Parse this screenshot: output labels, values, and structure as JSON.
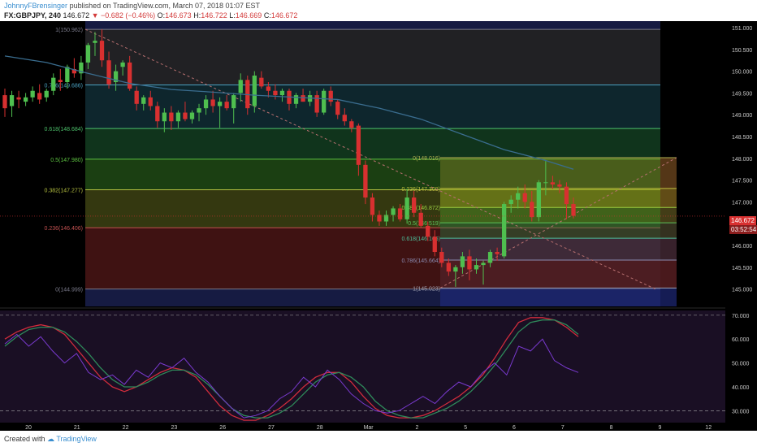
{
  "header": {
    "author": "JohnnyFBrensinger",
    "published": "published on TradingView.com, March 07, 2018 01:07 EST",
    "symbol": "FX:GBPJPY, 240",
    "last": "146.672",
    "arrow": "▼",
    "change": "−0.682 (−0.46%)",
    "open_label": "O:",
    "open": "146.673",
    "high_label": "H:",
    "high": "146.722",
    "low_label": "L:",
    "low": "146.669",
    "close_label": "C:",
    "close": "146.672"
  },
  "price_tags": {
    "last": "146.672",
    "countdown": "03:52:54"
  },
  "footer": {
    "created_with": "Created with",
    "brand": "TradingView"
  },
  "colors": {
    "background": "#000000",
    "up": "#4fbf4f",
    "down": "#d83030",
    "ma": "#3a6d8f",
    "stoch_k": "#d02c3c",
    "stoch_d": "#2e8a5a",
    "rsi": "#7a3ad0",
    "axis_text": "#c8c8c8"
  },
  "chart_data": [
    {
      "type": "candlestick",
      "symbol": "FX:GBPJPY",
      "timeframe": "240",
      "ylim": [
        144.6,
        151.15
      ],
      "y_ticks": [
        "151.000",
        "150.500",
        "150.000",
        "149.500",
        "149.000",
        "148.500",
        "148.000",
        "147.500",
        "147.000",
        "146.500",
        "146.000",
        "145.500",
        "145.000"
      ],
      "x_ticks": [
        "20",
        "21",
        "22",
        "23",
        "26",
        "27",
        "28",
        "Mar",
        "2",
        "5",
        "6",
        "7",
        "8",
        "9",
        "12"
      ],
      "candles": [
        {
          "o": 149.45,
          "h": 149.6,
          "l": 148.95,
          "c": 149.15
        },
        {
          "o": 149.2,
          "h": 149.55,
          "l": 148.95,
          "c": 149.45
        },
        {
          "o": 149.4,
          "h": 149.55,
          "l": 149.15,
          "c": 149.35
        },
        {
          "o": 149.3,
          "h": 149.5,
          "l": 149.2,
          "c": 149.4
        },
        {
          "o": 149.4,
          "h": 149.65,
          "l": 149.3,
          "c": 149.55
        },
        {
          "o": 149.5,
          "h": 149.7,
          "l": 149.25,
          "c": 149.35
        },
        {
          "o": 149.4,
          "h": 149.6,
          "l": 149.3,
          "c": 149.55
        },
        {
          "o": 149.55,
          "h": 149.95,
          "l": 149.45,
          "c": 149.85
        },
        {
          "o": 149.8,
          "h": 150.05,
          "l": 149.55,
          "c": 149.75
        },
        {
          "o": 149.75,
          "h": 150.15,
          "l": 149.6,
          "c": 150.1
        },
        {
          "o": 150.05,
          "h": 150.3,
          "l": 149.85,
          "c": 149.95
        },
        {
          "o": 149.95,
          "h": 150.35,
          "l": 149.8,
          "c": 150.2
        },
        {
          "o": 150.2,
          "h": 150.65,
          "l": 150.05,
          "c": 150.6
        },
        {
          "o": 150.65,
          "h": 150.9,
          "l": 150.35,
          "c": 150.7
        },
        {
          "o": 150.7,
          "h": 150.96,
          "l": 150.1,
          "c": 150.25
        },
        {
          "o": 150.25,
          "h": 150.45,
          "l": 149.6,
          "c": 149.7
        },
        {
          "o": 149.75,
          "h": 150.15,
          "l": 149.55,
          "c": 150.0
        },
        {
          "o": 150.1,
          "h": 150.25,
          "l": 149.9,
          "c": 150.2
        },
        {
          "o": 150.2,
          "h": 150.35,
          "l": 149.55,
          "c": 149.6
        },
        {
          "o": 149.55,
          "h": 149.65,
          "l": 149.1,
          "c": 149.25
        },
        {
          "o": 149.25,
          "h": 149.45,
          "l": 149.1,
          "c": 149.4
        },
        {
          "o": 149.4,
          "h": 149.55,
          "l": 149.1,
          "c": 149.2
        },
        {
          "o": 149.2,
          "h": 149.3,
          "l": 148.7,
          "c": 148.85
        },
        {
          "o": 148.85,
          "h": 149.15,
          "l": 148.6,
          "c": 149.05
        },
        {
          "o": 149.05,
          "h": 149.2,
          "l": 148.65,
          "c": 148.85
        },
        {
          "o": 148.85,
          "h": 149.1,
          "l": 148.7,
          "c": 149.05
        },
        {
          "o": 149.05,
          "h": 149.3,
          "l": 148.85,
          "c": 148.9
        },
        {
          "o": 148.9,
          "h": 149.1,
          "l": 148.8,
          "c": 149.05
        },
        {
          "o": 149.05,
          "h": 149.25,
          "l": 148.85,
          "c": 149.15
        },
        {
          "o": 149.15,
          "h": 149.45,
          "l": 149.0,
          "c": 149.35
        },
        {
          "o": 149.35,
          "h": 149.55,
          "l": 149.05,
          "c": 149.2
        },
        {
          "o": 149.2,
          "h": 149.4,
          "l": 148.7,
          "c": 149.3
        },
        {
          "o": 149.3,
          "h": 149.45,
          "l": 149.1,
          "c": 149.15
        },
        {
          "o": 149.15,
          "h": 149.5,
          "l": 148.8,
          "c": 149.45
        },
        {
          "o": 149.5,
          "h": 149.95,
          "l": 149.3,
          "c": 149.8
        },
        {
          "o": 149.8,
          "h": 149.9,
          "l": 149.0,
          "c": 149.15
        },
        {
          "o": 149.2,
          "h": 150.0,
          "l": 149.05,
          "c": 149.9
        },
        {
          "o": 149.85,
          "h": 150.0,
          "l": 149.6,
          "c": 149.65
        },
        {
          "o": 149.65,
          "h": 149.75,
          "l": 149.4,
          "c": 149.55
        },
        {
          "o": 149.55,
          "h": 149.7,
          "l": 149.35,
          "c": 149.45
        },
        {
          "o": 149.45,
          "h": 149.6,
          "l": 149.3,
          "c": 149.55
        },
        {
          "o": 149.55,
          "h": 149.6,
          "l": 149.1,
          "c": 149.25
        },
        {
          "o": 149.25,
          "h": 149.5,
          "l": 149.15,
          "c": 149.45
        },
        {
          "o": 149.45,
          "h": 149.6,
          "l": 149.3,
          "c": 149.3
        },
        {
          "o": 149.3,
          "h": 149.55,
          "l": 149.2,
          "c": 149.45
        },
        {
          "o": 149.45,
          "h": 149.55,
          "l": 148.95,
          "c": 149.05
        },
        {
          "o": 149.05,
          "h": 149.6,
          "l": 149.0,
          "c": 149.55
        },
        {
          "o": 149.55,
          "h": 149.65,
          "l": 149.2,
          "c": 149.3
        },
        {
          "o": 149.3,
          "h": 149.35,
          "l": 148.9,
          "c": 149.0
        },
        {
          "o": 149.0,
          "h": 149.15,
          "l": 148.75,
          "c": 148.85
        },
        {
          "o": 148.85,
          "h": 148.9,
          "l": 148.6,
          "c": 148.7
        },
        {
          "o": 148.75,
          "h": 148.8,
          "l": 147.6,
          "c": 147.85
        },
        {
          "o": 147.85,
          "h": 147.95,
          "l": 146.95,
          "c": 147.1
        },
        {
          "o": 147.1,
          "h": 147.2,
          "l": 146.55,
          "c": 146.7
        },
        {
          "o": 146.7,
          "h": 146.8,
          "l": 146.45,
          "c": 146.55
        },
        {
          "o": 146.55,
          "h": 146.8,
          "l": 146.45,
          "c": 146.7
        },
        {
          "o": 146.7,
          "h": 146.9,
          "l": 146.55,
          "c": 146.85
        },
        {
          "o": 146.85,
          "h": 146.95,
          "l": 146.55,
          "c": 146.6
        },
        {
          "o": 146.6,
          "h": 147.3,
          "l": 146.5,
          "c": 147.1
        },
        {
          "o": 147.1,
          "h": 147.25,
          "l": 146.65,
          "c": 146.75
        },
        {
          "o": 146.75,
          "h": 146.95,
          "l": 146.4,
          "c": 146.45
        },
        {
          "o": 146.45,
          "h": 146.55,
          "l": 146.1,
          "c": 146.2
        },
        {
          "o": 146.2,
          "h": 146.35,
          "l": 145.75,
          "c": 145.85
        },
        {
          "o": 145.85,
          "h": 145.95,
          "l": 145.5,
          "c": 145.6
        },
        {
          "o": 145.6,
          "h": 145.7,
          "l": 145.3,
          "c": 145.4
        },
        {
          "o": 145.4,
          "h": 145.55,
          "l": 145.05,
          "c": 145.5
        },
        {
          "o": 145.5,
          "h": 145.85,
          "l": 145.35,
          "c": 145.75
        },
        {
          "o": 145.75,
          "h": 145.9,
          "l": 145.2,
          "c": 145.45
        },
        {
          "o": 145.45,
          "h": 145.7,
          "l": 145.35,
          "c": 145.55
        },
        {
          "o": 145.55,
          "h": 145.65,
          "l": 145.1,
          "c": 145.6
        },
        {
          "o": 145.6,
          "h": 145.9,
          "l": 145.5,
          "c": 145.85
        },
        {
          "o": 145.85,
          "h": 145.95,
          "l": 145.65,
          "c": 145.8
        },
        {
          "o": 145.75,
          "h": 147.0,
          "l": 145.7,
          "c": 146.95
        },
        {
          "o": 146.95,
          "h": 147.15,
          "l": 146.75,
          "c": 147.05
        },
        {
          "o": 147.05,
          "h": 147.35,
          "l": 146.85,
          "c": 147.2
        },
        {
          "o": 147.2,
          "h": 147.4,
          "l": 146.85,
          "c": 147.0
        },
        {
          "o": 147.0,
          "h": 147.25,
          "l": 146.55,
          "c": 146.65
        },
        {
          "o": 146.65,
          "h": 147.5,
          "l": 146.55,
          "c": 147.45
        },
        {
          "o": 147.45,
          "h": 147.95,
          "l": 147.15,
          "c": 147.45
        },
        {
          "o": 147.45,
          "h": 147.6,
          "l": 147.3,
          "c": 147.4
        },
        {
          "o": 147.4,
          "h": 147.5,
          "l": 147.2,
          "c": 147.35
        },
        {
          "o": 147.35,
          "h": 147.45,
          "l": 146.6,
          "c": 146.95
        },
        {
          "o": 146.95,
          "h": 147.1,
          "l": 146.62,
          "c": 146.68
        }
      ],
      "moving_average": [
        {
          "i": 0,
          "v": 150.35
        },
        {
          "i": 6,
          "v": 150.2
        },
        {
          "i": 12,
          "v": 149.95
        },
        {
          "i": 18,
          "v": 149.72
        },
        {
          "i": 24,
          "v": 149.58
        },
        {
          "i": 30,
          "v": 149.52
        },
        {
          "i": 36,
          "v": 149.45
        },
        {
          "i": 42,
          "v": 149.4
        },
        {
          "i": 48,
          "v": 149.35
        },
        {
          "i": 54,
          "v": 149.15
        },
        {
          "i": 60,
          "v": 148.9
        },
        {
          "i": 66,
          "v": 148.55
        },
        {
          "i": 72,
          "v": 148.2
        },
        {
          "i": 78,
          "v": 147.95
        },
        {
          "i": 82,
          "v": 147.75
        }
      ],
      "fib_retracement_1": {
        "levels": [
          {
            "label": "1(150.962)",
            "price": 150.962
          },
          {
            "label": "0.786(149.686)",
            "price": 149.686
          },
          {
            "label": "0.618(148.684)",
            "price": 148.684
          },
          {
            "label": "0.5(147.980)",
            "price": 147.98
          },
          {
            "label": "0.382(147.277)",
            "price": 147.277
          },
          {
            "label": "0.236(146.406)",
            "price": 146.406
          },
          {
            "label": "0(144.999)",
            "price": 144.999
          }
        ]
      },
      "fib_retracement_2": {
        "levels": [
          {
            "label": "0(148.016)",
            "price": 148.016
          },
          {
            "label": "0.236(147.309)",
            "price": 147.309
          },
          {
            "label": "0.382(146.872)",
            "price": 146.872
          },
          {
            "label": "0.5(146.519)",
            "price": 146.519
          },
          {
            "label": "0.618(146.166)",
            "price": 146.166
          },
          {
            "label": "0.786(145.664)",
            "price": 145.664
          },
          {
            "label": "1(145.023)",
            "price": 145.023
          }
        ]
      },
      "last_price": 146.672
    },
    {
      "type": "line",
      "panel": "oscillator",
      "ylim": [
        25,
        72
      ],
      "y_ticks": [
        "70.000",
        "60.000",
        "50.000",
        "40.000",
        "30.000"
      ],
      "levels": [
        70,
        30
      ],
      "series": [
        {
          "id": "k",
          "values": [
            60,
            63,
            65,
            66,
            65,
            62,
            56,
            50,
            44,
            40,
            38,
            40,
            43,
            46,
            48,
            47,
            44,
            38,
            32,
            28,
            26,
            26,
            28,
            31,
            35,
            40,
            44,
            46,
            46,
            42,
            36,
            31,
            28,
            27,
            27,
            28,
            30,
            33,
            36,
            40,
            45,
            52,
            60,
            67,
            69,
            69,
            68,
            65,
            61
          ]
        },
        {
          "id": "d",
          "values": [
            57,
            61,
            64,
            65,
            65,
            63,
            59,
            54,
            48,
            43,
            40,
            40,
            42,
            45,
            47,
            47,
            45,
            41,
            36,
            31,
            28,
            27,
            27,
            29,
            32,
            37,
            42,
            45,
            46,
            44,
            40,
            34,
            30,
            28,
            27,
            27,
            29,
            31,
            34,
            38,
            43,
            49,
            56,
            63,
            67,
            68,
            68,
            66,
            62
          ]
        },
        {
          "id": "rsi",
          "values": [
            58,
            62,
            57,
            61,
            55,
            50,
            54,
            46,
            43,
            45,
            41,
            47,
            44,
            50,
            48,
            52,
            46,
            42,
            36,
            31,
            27,
            28,
            30,
            35,
            38,
            44,
            40,
            47,
            43,
            37,
            33,
            30,
            29,
            30,
            33,
            36,
            33,
            38,
            42,
            40,
            46,
            50,
            45,
            57,
            55,
            60,
            51,
            48,
            46
          ]
        }
      ]
    }
  ]
}
